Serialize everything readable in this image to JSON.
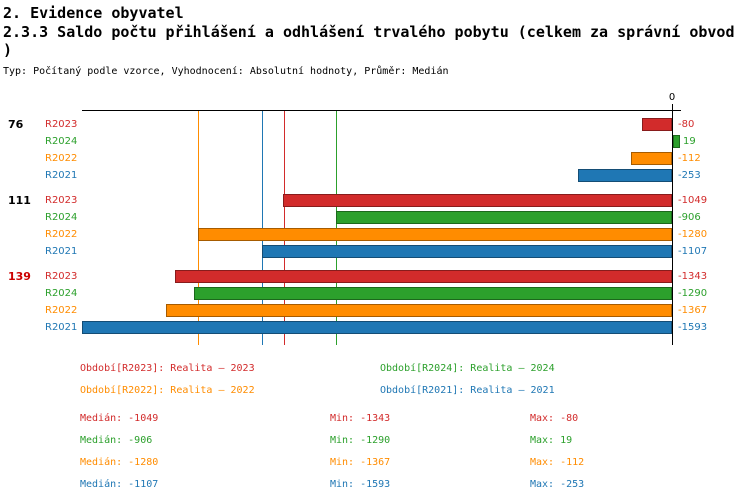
{
  "header": {
    "title": "2. Evidence obyvatel",
    "subtitle_line1": "2.3.3 Saldo počtu přihlášení a odhlášení trvalého pobytu (celkem za správní obvod",
    "subtitle_line2": ")",
    "meta": "Typ: Počítaný podle vzorce, Vyhodnocení: Absolutní hodnoty, Průměr: Medián"
  },
  "chart_data": {
    "type": "bar",
    "orientation": "horizontal",
    "title": "2.3.3 Saldo počtu přihlášení a odhlášení trvalého pobytu (celkem za správní obvod)",
    "value_axis": {
      "zero_label": "0",
      "min": -1593,
      "max": 19,
      "grid": "median-guides-only"
    },
    "row_order": [
      "R2023",
      "R2024",
      "R2022",
      "R2021"
    ],
    "series": [
      {
        "name": "R2023",
        "color": "#d22b2b",
        "legend": "Období[R2023]: Realita – 2023",
        "median": -1049,
        "min": -1343,
        "max": -80
      },
      {
        "name": "R2024",
        "color": "#2ca02c",
        "legend": "Období[R2024]: Realita – 2024",
        "median": -906,
        "min": -1290,
        "max": 19
      },
      {
        "name": "R2022",
        "color": "#ff8c00",
        "legend": "Období[R2022]: Realita – 2022",
        "median": -1280,
        "min": -1367,
        "max": -112
      },
      {
        "name": "R2021",
        "color": "#1f77b4",
        "legend": "Období[R2021]: Realita – 2021",
        "median": -1107,
        "min": -1593,
        "max": -253
      }
    ],
    "groups": [
      {
        "label": "76",
        "label_color": "#000000",
        "values": {
          "R2023": -80,
          "R2024": 19,
          "R2022": -112,
          "R2021": -253
        }
      },
      {
        "label": "111",
        "label_color": "#000000",
        "values": {
          "R2023": -1049,
          "R2024": -906,
          "R2022": -1280,
          "R2021": -1107
        }
      },
      {
        "label": "139",
        "label_color": "#cc0000",
        "values": {
          "R2023": -1343,
          "R2024": -1290,
          "R2022": -1367,
          "R2021": -1593
        }
      }
    ],
    "median_lines_shown": true,
    "axis_color": "#000000"
  },
  "stats_labels": {
    "median": "Medián",
    "min": "Min",
    "max": "Max"
  }
}
